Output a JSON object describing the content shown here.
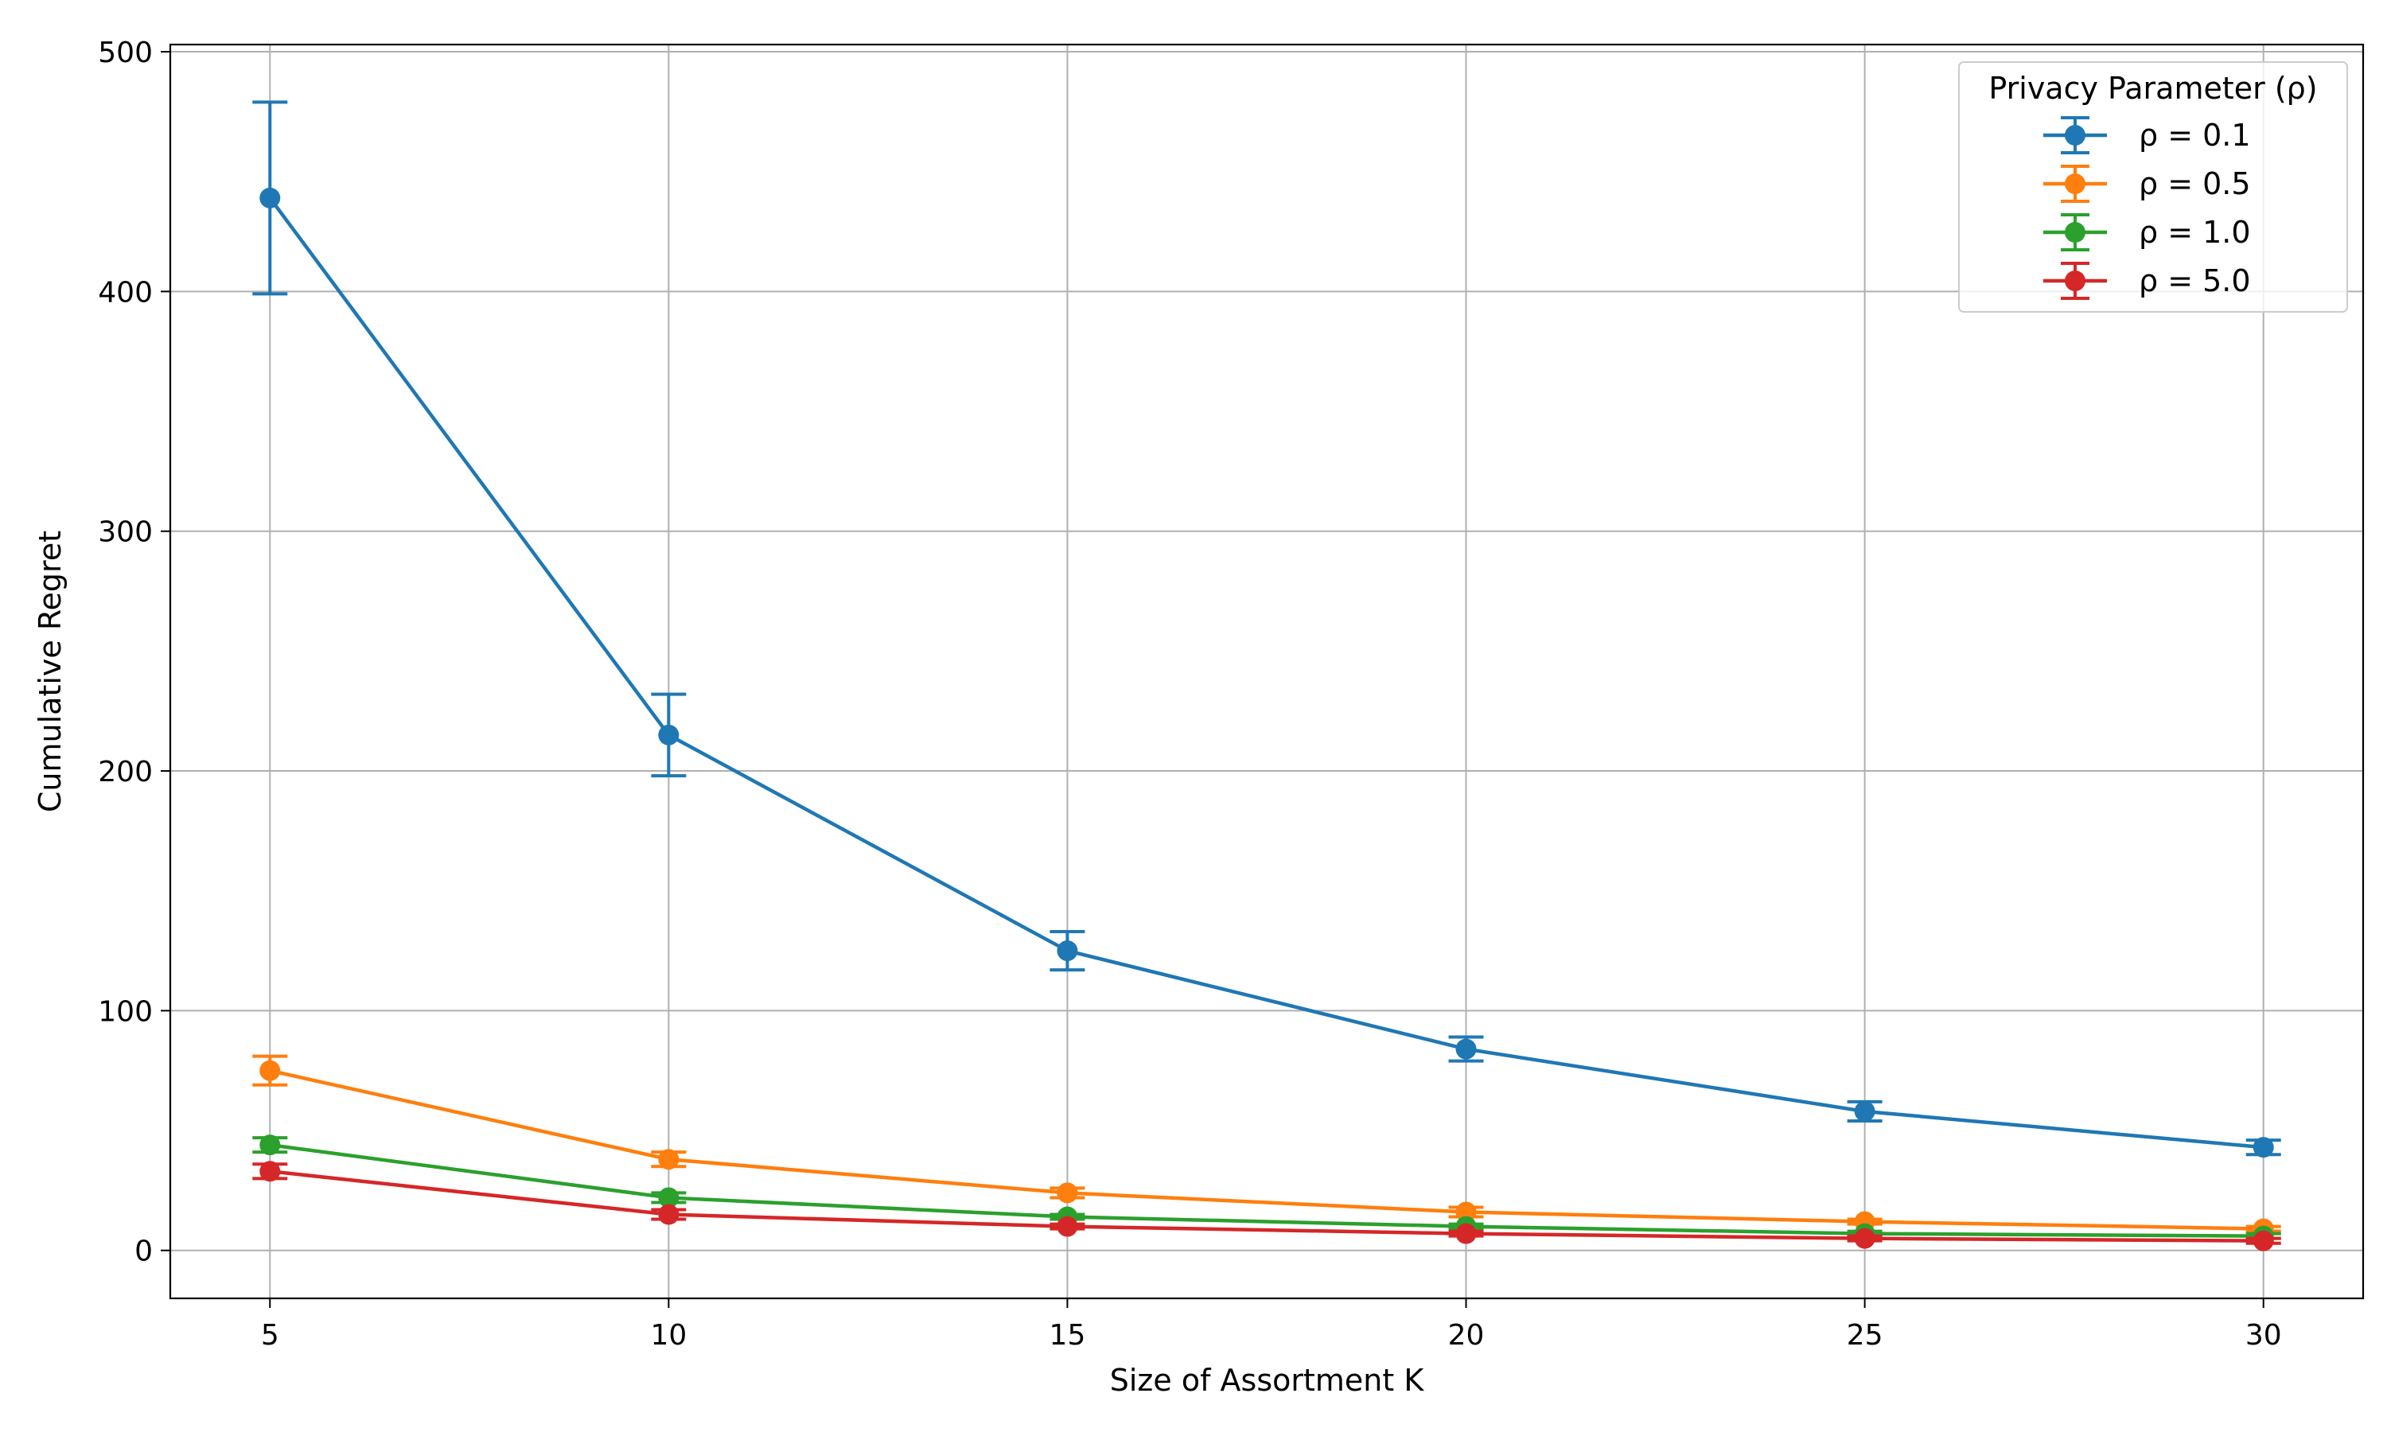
{
  "chart_data": {
    "type": "line",
    "title": "",
    "xlabel": "Size of Assortment K",
    "ylabel": "Cumulative Regret",
    "x": [
      5,
      10,
      15,
      20,
      25,
      30
    ],
    "xlim": [
      3.75,
      31.25
    ],
    "ylim": [
      -20,
      503
    ],
    "xticks": [
      5,
      10,
      15,
      20,
      25,
      30
    ],
    "yticks": [
      0,
      100,
      200,
      300,
      400,
      500
    ],
    "grid": true,
    "legend": {
      "title": "Privacy Parameter (ρ)",
      "position": "top-right"
    },
    "series": [
      {
        "name": "ρ = 0.1",
        "color": "#1f77b4",
        "values": [
          439,
          215,
          125,
          84,
          58,
          43
        ],
        "errors": [
          40,
          17,
          8,
          5,
          4,
          3
        ]
      },
      {
        "name": "ρ = 0.5",
        "color": "#ff7f0e",
        "values": [
          75,
          38,
          24,
          16,
          12,
          9
        ],
        "errors": [
          6,
          3,
          2,
          2,
          1,
          1
        ]
      },
      {
        "name": "ρ = 1.0",
        "color": "#2ca02c",
        "values": [
          44,
          22,
          14,
          10,
          7,
          6
        ],
        "errors": [
          3,
          2,
          1,
          1,
          1,
          1
        ]
      },
      {
        "name": "ρ = 5.0",
        "color": "#d62728",
        "values": [
          33,
          15,
          10,
          7,
          5,
          4
        ],
        "errors": [
          3,
          2,
          1,
          1,
          1,
          1
        ]
      }
    ]
  }
}
